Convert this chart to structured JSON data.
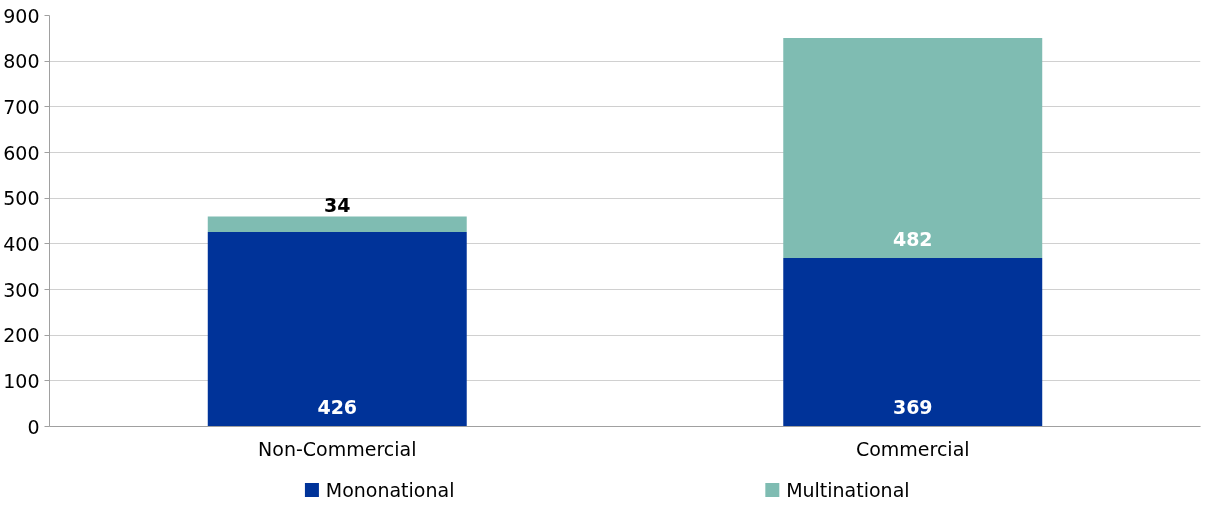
{
  "chart_data": {
    "type": "bar",
    "stacked": true,
    "categories": [
      "Non-Commercial",
      "Commercial"
    ],
    "series": [
      {
        "name": "Mononational",
        "color": "#003399",
        "values": [
          426,
          369
        ]
      },
      {
        "name": "Multinational",
        "color": "#7fbcb2",
        "values": [
          34,
          482
        ]
      }
    ],
    "ylim": [
      0,
      900
    ],
    "yticks": [
      0,
      100,
      200,
      300,
      400,
      500,
      600,
      700,
      800,
      900
    ],
    "grid": "y",
    "legend": "bottom",
    "data_labels": true
  }
}
